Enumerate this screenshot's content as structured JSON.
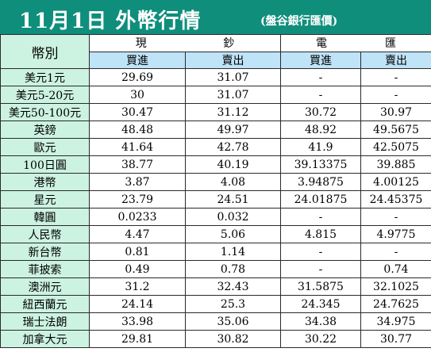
{
  "header": {
    "title": "11月1日 外幣行情",
    "subtitle": "(盤谷銀行匯價)"
  },
  "table": {
    "currency_header": "幣別",
    "cash_group": [
      "現",
      "鈔"
    ],
    "telegraphic_group": [
      "電",
      "匯"
    ],
    "sub_headers": [
      "買進",
      "賣出",
      "買進",
      "賣出"
    ],
    "rows": [
      {
        "currency": "美元1元",
        "cash_buy": "29.69",
        "cash_sell": "31.07",
        "tt_buy": "-",
        "tt_sell": "-"
      },
      {
        "currency": "美元5-20元",
        "cash_buy": "30",
        "cash_sell": "31.07",
        "tt_buy": "-",
        "tt_sell": "-"
      },
      {
        "currency": "美元50-100元",
        "cash_buy": "30.47",
        "cash_sell": "31.12",
        "tt_buy": "30.72",
        "tt_sell": "30.97"
      },
      {
        "currency": "英鎊",
        "cash_buy": "48.48",
        "cash_sell": "49.97",
        "tt_buy": "48.92",
        "tt_sell": "49.5675"
      },
      {
        "currency": "歐元",
        "cash_buy": "41.64",
        "cash_sell": "42.78",
        "tt_buy": "41.9",
        "tt_sell": "42.5075"
      },
      {
        "currency": "100日圓",
        "cash_buy": "38.77",
        "cash_sell": "40.19",
        "tt_buy": "39.13375",
        "tt_sell": "39.885"
      },
      {
        "currency": "港幣",
        "cash_buy": "3.87",
        "cash_sell": "4.08",
        "tt_buy": "3.94875",
        "tt_sell": "4.00125"
      },
      {
        "currency": "星元",
        "cash_buy": "23.79",
        "cash_sell": "24.51",
        "tt_buy": "24.01875",
        "tt_sell": "24.45375"
      },
      {
        "currency": "韓圓",
        "cash_buy": "0.0233",
        "cash_sell": "0.032",
        "tt_buy": "-",
        "tt_sell": "-"
      },
      {
        "currency": "人民幣",
        "cash_buy": "4.47",
        "cash_sell": "5.06",
        "tt_buy": "4.815",
        "tt_sell": "4.9775"
      },
      {
        "currency": "新台幣",
        "cash_buy": "0.81",
        "cash_sell": "1.14",
        "tt_buy": "-",
        "tt_sell": "-"
      },
      {
        "currency": "菲披索",
        "cash_buy": "0.49",
        "cash_sell": "0.78",
        "tt_buy": "-",
        "tt_sell": "0.74"
      },
      {
        "currency": "澳洲元",
        "cash_buy": "31.2",
        "cash_sell": "32.43",
        "tt_buy": "31.5875",
        "tt_sell": "32.1025"
      },
      {
        "currency": "紐西蘭元",
        "cash_buy": "24.14",
        "cash_sell": "25.3",
        "tt_buy": "24.345",
        "tt_sell": "24.7625"
      },
      {
        "currency": "瑞士法朗",
        "cash_buy": "33.98",
        "cash_sell": "35.06",
        "tt_buy": "34.38",
        "tt_sell": "34.975"
      },
      {
        "currency": "加拿大元",
        "cash_buy": "29.81",
        "cash_sell": "30.82",
        "tt_buy": "30.22",
        "tt_sell": "30.77"
      }
    ]
  },
  "colors": {
    "header_bg": "#0f8e7c",
    "header_text": "#ffffff",
    "currency_col_bg": "#ccf2e2",
    "subheader_bg": "#bfe3f7",
    "value_bg": "#ffffff"
  }
}
